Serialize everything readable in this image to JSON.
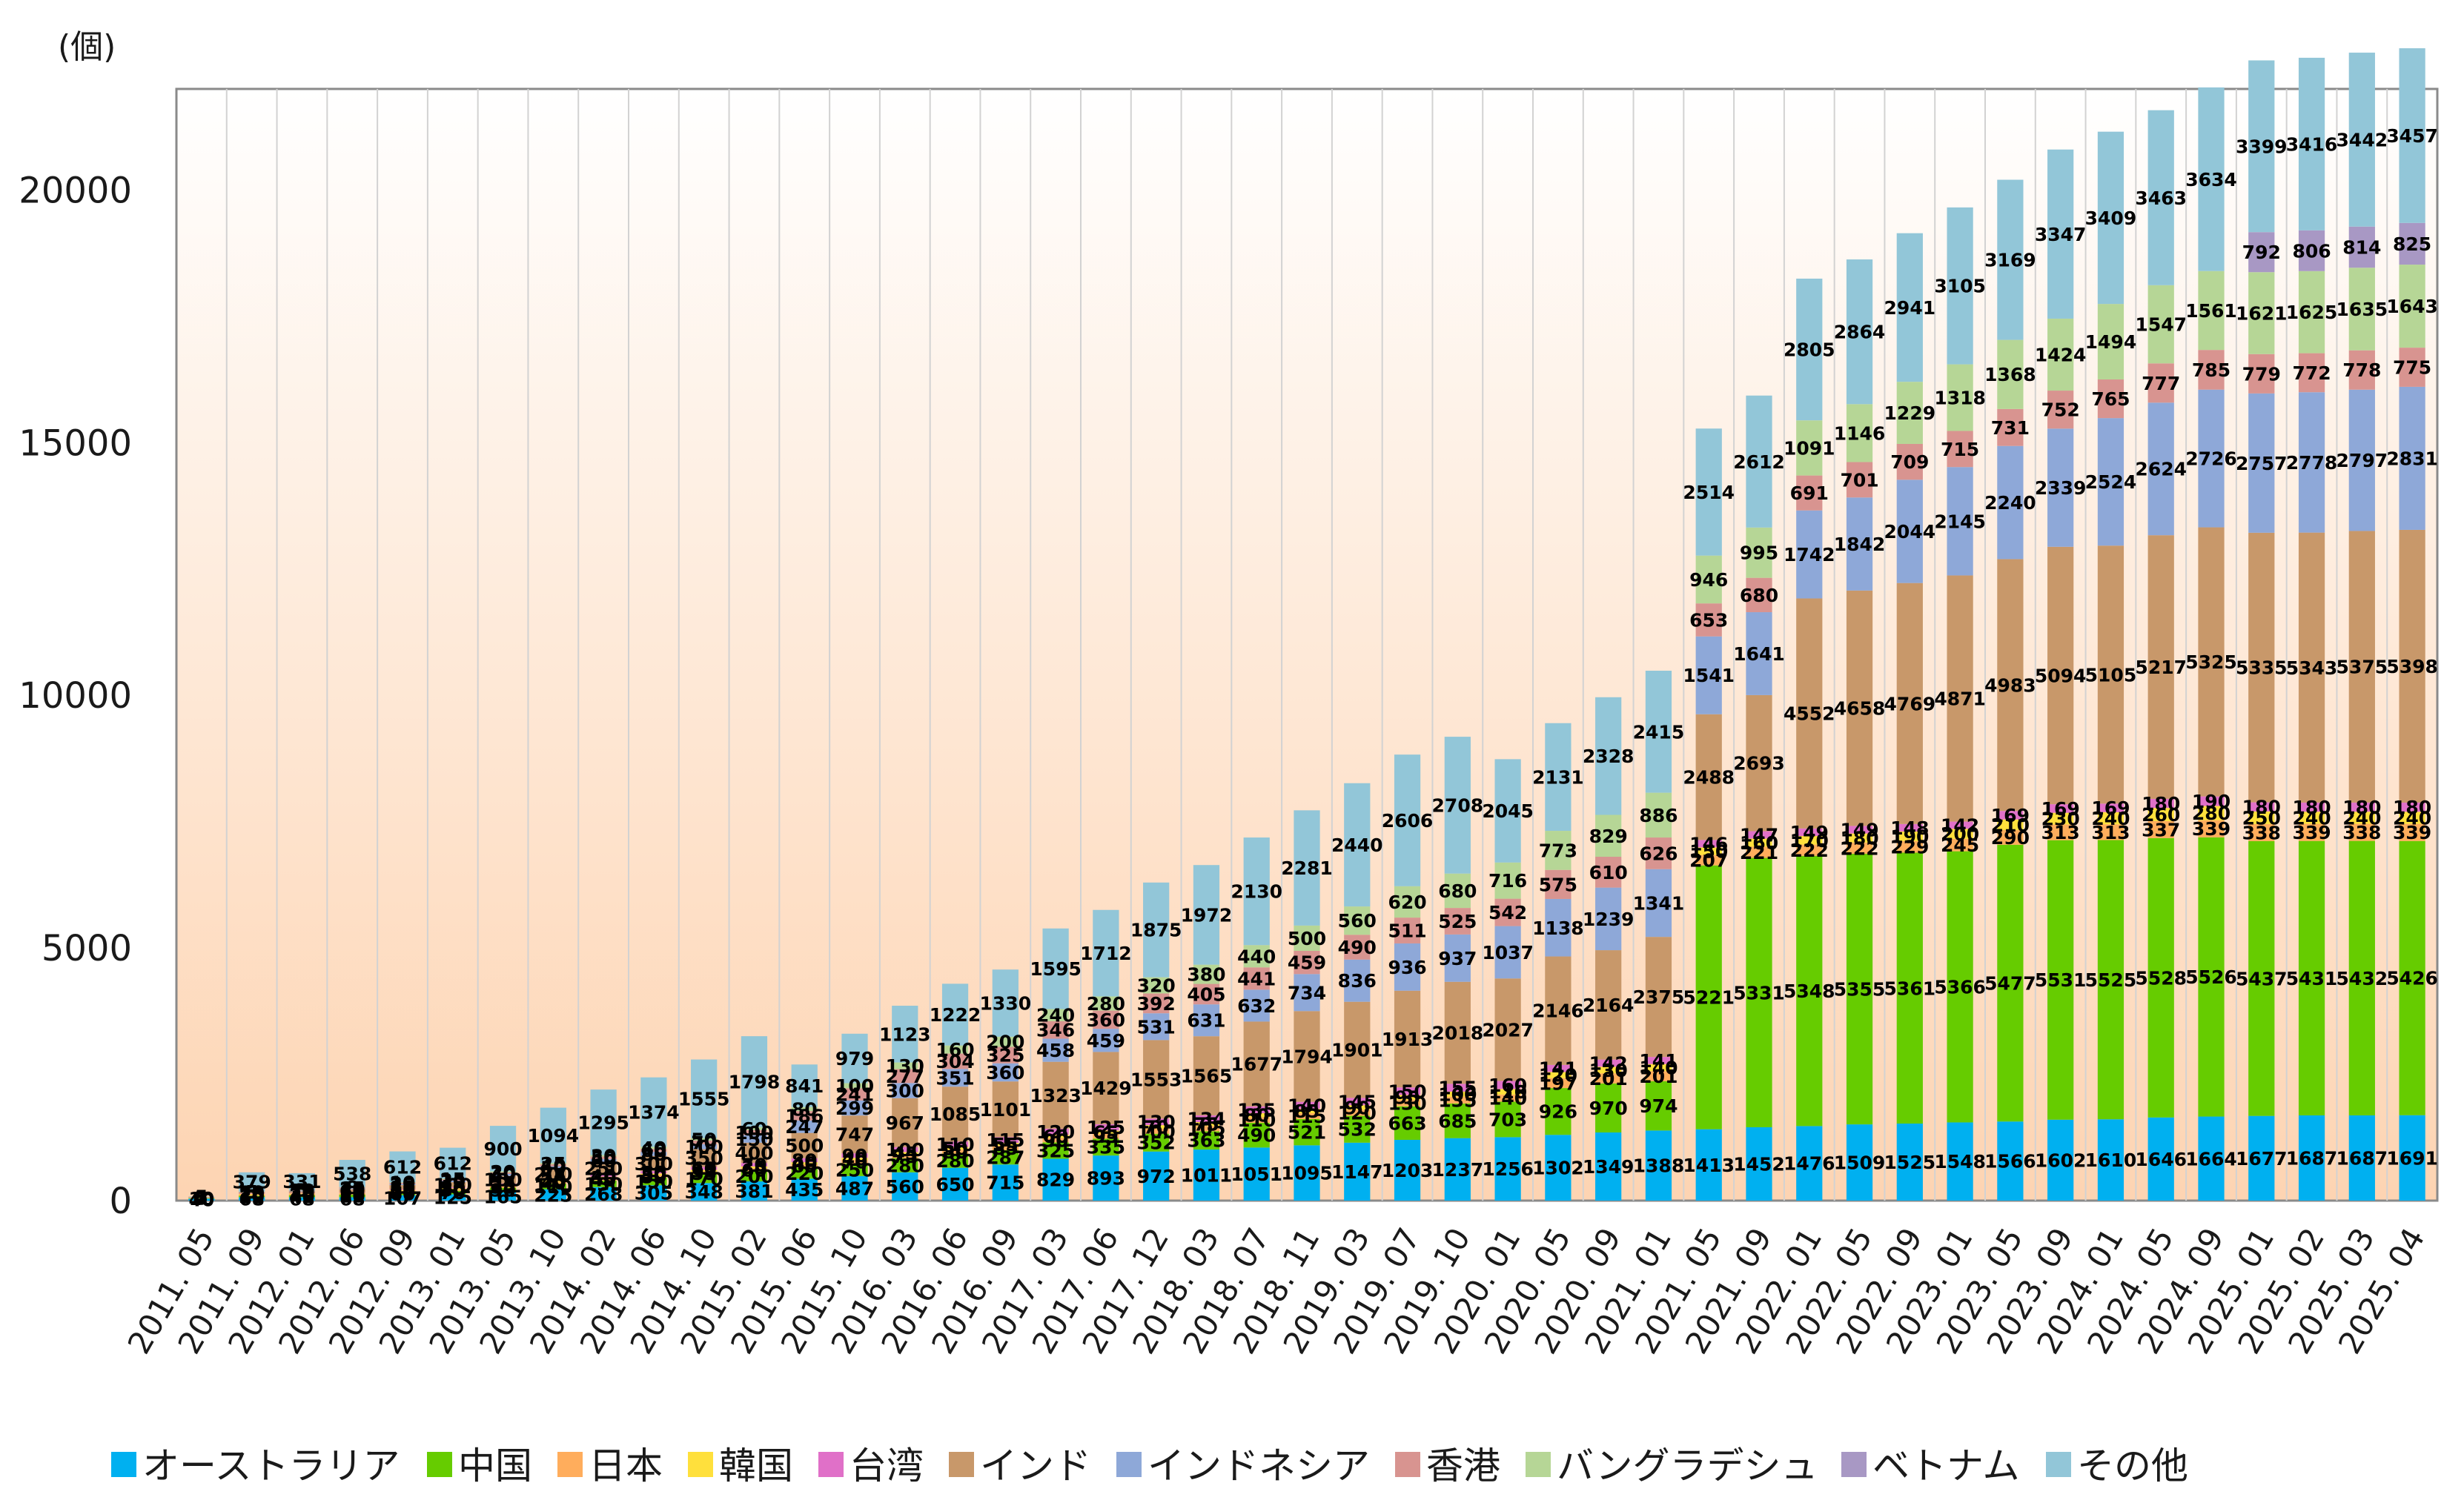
{
  "chart_data": {
    "type": "bar",
    "stacked": true,
    "unit_label": "(個)",
    "ylim": [
      0,
      22000
    ],
    "yticks": [
      0,
      5000,
      10000,
      15000,
      20000
    ],
    "grid": "vertical",
    "legend_position": "bottom",
    "categories": [
      "2011. 05",
      "2011. 09",
      "2012. 01",
      "2012. 06",
      "2012. 09",
      "2013. 01",
      "2013. 05",
      "2013. 10",
      "2014. 02",
      "2014. 06",
      "2014. 10",
      "2015. 02",
      "2015. 06",
      "2015. 10",
      "2016. 03",
      "2016. 06",
      "2016. 09",
      "2017. 03",
      "2017. 06",
      "2017. 12",
      "2018. 03",
      "2018. 07",
      "2018. 11",
      "2019. 03",
      "2019. 07",
      "2019. 10",
      "2020. 01",
      "2020. 05",
      "2020. 09",
      "2021. 01",
      "2021. 05",
      "2021. 09",
      "2022. 01",
      "2022. 05",
      "2022. 09",
      "2023. 01",
      "2023. 05",
      "2023. 09",
      "2024. 01",
      "2024. 05",
      "2024. 09",
      "2025. 01",
      "2025. 02",
      "2025. 03",
      "2025. 04"
    ],
    "series": [
      {
        "name": "オーストラリア",
        "color": "#00b0f0",
        "values": [
          40,
          68,
          68,
          68,
          107,
          125,
          165,
          225,
          268,
          305,
          348,
          381,
          435,
          487,
          560,
          650,
          715,
          829,
          893,
          972,
          1011,
          1051,
          1095,
          1147,
          1203,
          1237,
          1256,
          1302,
          1349,
          1388,
          1413,
          1452,
          1476,
          1509,
          1525,
          1548,
          1566,
          1602,
          1610,
          1646,
          1664,
          1677,
          1687,
          1687,
          1691
        ]
      },
      {
        "name": "中国",
        "color": "#66cc00",
        "values": [
          10,
          30,
          40,
          50,
          60,
          70,
          90,
          110,
          130,
          150,
          170,
          200,
          220,
          250,
          280,
          280,
          287,
          325,
          335,
          352,
          363,
          490,
          521,
          532,
          663,
          685,
          703,
          926,
          970,
          974,
          5221,
          5331,
          5348,
          5355,
          5361,
          5366,
          5477,
          5531,
          5525,
          5528,
          5526,
          5437,
          5431,
          5432,
          5426
        ]
      },
      {
        "name": "日本",
        "color": "#ffad5c",
        "values": [
          5,
          20,
          20,
          20,
          25,
          30,
          35,
          40,
          45,
          50,
          55,
          60,
          65,
          70,
          75,
          80,
          85,
          90,
          95,
          100,
          105,
          110,
          115,
          120,
          130,
          135,
          140,
          197,
          201,
          201,
          207,
          221,
          222,
          222,
          229,
          245,
          290,
          313,
          313,
          337,
          339,
          338,
          339,
          338,
          339
        ]
      },
      {
        "name": "韓国",
        "color": "#ffe03c",
        "values": [
          5,
          15,
          15,
          15,
          20,
          20,
          25,
          25,
          30,
          30,
          35,
          35,
          40,
          40,
          45,
          50,
          55,
          60,
          65,
          70,
          75,
          80,
          85,
          90,
          95,
          100,
          110,
          120,
          130,
          140,
          150,
          160,
          170,
          180,
          190,
          200,
          210,
          230,
          240,
          260,
          280,
          250,
          240,
          240,
          240
        ]
      },
      {
        "name": "台湾",
        "color": "#e070c8",
        "values": [
          5,
          10,
          10,
          12,
          15,
          20,
          25,
          30,
          40,
          50,
          60,
          70,
          80,
          90,
          100,
          110,
          115,
          120,
          125,
          130,
          134,
          135,
          140,
          145,
          150,
          155,
          160,
          141,
          142,
          141,
          146,
          147,
          149,
          149,
          148,
          142,
          169,
          169,
          169,
          180,
          190,
          180,
          180,
          180,
          180
        ]
      },
      {
        "name": "インド",
        "color": "#c8986a",
        "values": [
          5,
          20,
          30,
          60,
          80,
          100,
          150,
          200,
          250,
          300,
          350,
          400,
          500,
          747,
          967,
          1085,
          1101,
          1323,
          1429,
          1553,
          1565,
          1677,
          1794,
          1901,
          1913,
          2018,
          2027,
          2146,
          2164,
          2375,
          2488,
          2693,
          4552,
          4658,
          4769,
          4871,
          4983,
          5094,
          5105,
          5217,
          5325,
          5335,
          5343,
          5375,
          5398
        ]
      },
      {
        "name": "インドネシア",
        "color": "#8ea8d8",
        "values": [
          3,
          10,
          15,
          20,
          25,
          30,
          40,
          50,
          60,
          80,
          100,
          150,
          247,
          299,
          300,
          351,
          360,
          458,
          459,
          531,
          631,
          632,
          734,
          836,
          936,
          937,
          1037,
          1138,
          1239,
          1341,
          1541,
          1641,
          1742,
          1842,
          2044,
          2145,
          2240,
          2339,
          2524,
          2624,
          2726,
          2757,
          2778,
          2797,
          2831
        ]
      },
      {
        "name": "香港",
        "color": "#d89490",
        "values": [
          2,
          5,
          10,
          15,
          20,
          25,
          30,
          40,
          50,
          60,
          70,
          100,
          186,
          241,
          277,
          304,
          325,
          346,
          360,
          392,
          405,
          441,
          459,
          490,
          511,
          525,
          542,
          575,
          610,
          626,
          653,
          680,
          691,
          701,
          709,
          715,
          731,
          752,
          765,
          777,
          785,
          779,
          772,
          778,
          775
        ]
      },
      {
        "name": "バングラデシュ",
        "color": "#b6d696",
        "values": [
          1,
          3,
          5,
          8,
          10,
          15,
          20,
          25,
          30,
          40,
          50,
          60,
          80,
          100,
          130,
          160,
          200,
          240,
          280,
          320,
          380,
          440,
          500,
          560,
          620,
          680,
          716,
          773,
          829,
          886,
          946,
          995,
          1091,
          1146,
          1229,
          1318,
          1368,
          1424,
          1494,
          1547,
          1561,
          1621,
          1625,
          1635,
          1643
        ]
      },
      {
        "name": "ベトナム",
        "color": "#a898c4",
        "values": [
          0,
          0,
          0,
          0,
          0,
          0,
          0,
          0,
          0,
          0,
          0,
          0,
          0,
          0,
          0,
          0,
          0,
          0,
          0,
          0,
          0,
          0,
          0,
          0,
          0,
          0,
          0,
          0,
          0,
          0,
          0,
          0,
          0,
          0,
          0,
          0,
          0,
          0,
          0,
          0,
          0,
          792,
          806,
          814,
          825
        ]
      },
      {
        "name": "その他",
        "color": "#92c6d8",
        "values": [
          5,
          379,
          331,
          538,
          612,
          612,
          900,
          1094,
          1295,
          1374,
          1555,
          1798,
          841,
          979,
          1123,
          1222,
          1330,
          1595,
          1712,
          1875,
          1972,
          2130,
          2281,
          2440,
          2606,
          2708,
          2045,
          2131,
          2328,
          2415,
          2514,
          2612,
          2805,
          2864,
          2941,
          3105,
          3169,
          3347,
          3409,
          3463,
          3634,
          3399,
          3416,
          3442,
          3457
        ]
      }
    ]
  }
}
